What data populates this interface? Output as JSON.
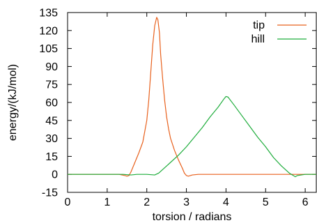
{
  "chart_data": {
    "type": "line",
    "title": "",
    "xlabel": "torsion / radians",
    "ylabel": "energy/(kJ/mol)",
    "xlim": [
      0,
      6.28
    ],
    "ylim": [
      -15,
      135
    ],
    "xticks": [
      0,
      1,
      2,
      3,
      4,
      5,
      6
    ],
    "yticks": [
      -15,
      0,
      15,
      30,
      45,
      60,
      75,
      90,
      105,
      120,
      135
    ],
    "grid": false,
    "legend_position": "top-right",
    "series": [
      {
        "name": "tip",
        "color": "#e8601c",
        "x": [
          0.0,
          0.5,
          1.0,
          1.3,
          1.45,
          1.5,
          1.55,
          1.6,
          1.7,
          1.8,
          1.9,
          2.0,
          2.05,
          2.1,
          2.15,
          2.2,
          2.25,
          2.28,
          2.32,
          2.35,
          2.4,
          2.45,
          2.5,
          2.55,
          2.6,
          2.7,
          2.8,
          2.9,
          2.95,
          3.0,
          3.05,
          3.15,
          3.3,
          3.6,
          4.0,
          5.0,
          6.28
        ],
        "y": [
          0,
          0,
          0,
          0,
          -1,
          -1.5,
          -1,
          2,
          10,
          18,
          27,
          45,
          62,
          85,
          108,
          124,
          131,
          129,
          118,
          100,
          80,
          62,
          48,
          38,
          30,
          20,
          12,
          5,
          1,
          -1,
          -1.5,
          -0.5,
          0,
          0,
          0,
          0,
          0
        ]
      },
      {
        "name": "hill",
        "color": "#1fad3c",
        "x": [
          0.0,
          1.0,
          1.4,
          1.6,
          1.75,
          2.0,
          2.2,
          2.3,
          2.4,
          2.5,
          2.6,
          2.8,
          3.0,
          3.2,
          3.4,
          3.6,
          3.8,
          3.95,
          4.0,
          4.05,
          4.2,
          4.4,
          4.6,
          4.8,
          5.0,
          5.2,
          5.4,
          5.6,
          5.65,
          5.7,
          5.75,
          5.8,
          6.0,
          6.28
        ],
        "y": [
          0,
          0,
          0,
          -0.5,
          0,
          0,
          -0.5,
          1,
          4,
          7,
          10,
          16,
          23,
          31,
          39,
          48,
          56,
          63,
          65,
          64.5,
          58,
          49,
          40,
          31,
          23,
          14,
          7,
          1,
          0,
          -1,
          -2,
          -1,
          0,
          0
        ]
      }
    ]
  }
}
